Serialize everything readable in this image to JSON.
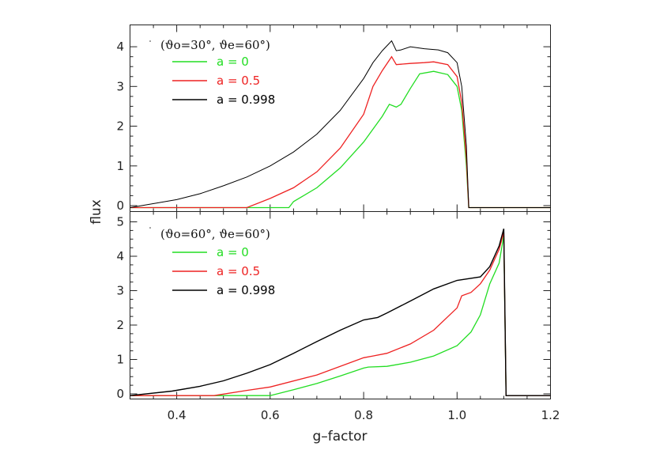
{
  "chart_data": {
    "type": "line",
    "xlabel": "g–factor",
    "ylabel": "flux",
    "xlim": [
      0.3,
      1.2
    ],
    "x_ticks": [
      "0.4",
      "0.6",
      "0.8",
      "1.0",
      "1.2"
    ],
    "grid": false,
    "legend_position": "top-left",
    "panels": [
      {
        "title": "(ϑo=30°, ϑe=60°)",
        "ylim": [
          -0.15,
          4.55
        ],
        "y_ticks": [
          "0",
          "1",
          "2",
          "3",
          "4"
        ],
        "series": [
          {
            "name": "a = 0",
            "color": "#22dd22",
            "x": [
              0.3,
              0.64,
              0.65,
              0.7,
              0.75,
              0.8,
              0.84,
              0.855,
              0.87,
              0.88,
              0.9,
              0.92,
              0.95,
              0.98,
              1.0,
              1.01,
              1.02,
              1.025,
              1.2
            ],
            "y": [
              -0.05,
              -0.05,
              0.1,
              0.45,
              0.95,
              1.6,
              2.25,
              2.55,
              2.48,
              2.55,
              2.95,
              3.32,
              3.38,
              3.3,
              3.0,
              2.4,
              1.0,
              -0.05,
              -0.05
            ]
          },
          {
            "name": "a = 0.5",
            "color": "#ee2222",
            "x": [
              0.3,
              0.55,
              0.6,
              0.65,
              0.7,
              0.75,
              0.8,
              0.82,
              0.84,
              0.86,
              0.87,
              0.9,
              0.93,
              0.95,
              0.98,
              1.0,
              1.01,
              1.02,
              1.025,
              1.2
            ],
            "y": [
              -0.05,
              -0.05,
              0.18,
              0.45,
              0.85,
              1.45,
              2.3,
              3.0,
              3.4,
              3.75,
              3.55,
              3.58,
              3.6,
              3.62,
              3.55,
              3.25,
              2.6,
              1.2,
              -0.05,
              -0.05
            ]
          },
          {
            "name": "a = 0.998",
            "color": "#000000",
            "x": [
              0.3,
              0.4,
              0.45,
              0.5,
              0.55,
              0.6,
              0.65,
              0.7,
              0.75,
              0.8,
              0.82,
              0.84,
              0.86,
              0.87,
              0.88,
              0.9,
              0.93,
              0.96,
              0.98,
              1.0,
              1.01,
              1.02,
              1.025,
              1.2
            ],
            "y": [
              -0.05,
              0.15,
              0.3,
              0.5,
              0.72,
              1.0,
              1.35,
              1.8,
              2.4,
              3.2,
              3.6,
              3.9,
              4.15,
              3.9,
              3.92,
              4.0,
              3.95,
              3.92,
              3.85,
              3.6,
              3.0,
              1.5,
              -0.05,
              -0.05
            ]
          }
        ]
      },
      {
        "title": "(ϑo=60°, ϑe=60°)",
        "ylim": [
          -0.15,
          5.3
        ],
        "y_ticks": [
          "0",
          "1",
          "2",
          "3",
          "4",
          "5"
        ],
        "series": [
          {
            "name": "a = 0",
            "color": "#22dd22",
            "x": [
              0.3,
              0.6,
              0.65,
              0.7,
              0.75,
              0.8,
              0.81,
              0.85,
              0.9,
              0.95,
              1.0,
              1.03,
              1.05,
              1.07,
              1.09,
              1.1,
              1.105,
              1.2
            ],
            "y": [
              -0.05,
              -0.05,
              0.12,
              0.3,
              0.52,
              0.75,
              0.78,
              0.8,
              0.92,
              1.1,
              1.4,
              1.8,
              2.3,
              3.2,
              3.8,
              4.6,
              -0.05,
              -0.05
            ]
          },
          {
            "name": "a = 0.5",
            "color": "#ee2222",
            "x": [
              0.3,
              0.48,
              0.55,
              0.6,
              0.7,
              0.8,
              0.82,
              0.85,
              0.9,
              0.95,
              1.0,
              1.01,
              1.03,
              1.05,
              1.07,
              1.09,
              1.1,
              1.105,
              1.2
            ],
            "y": [
              -0.05,
              -0.05,
              0.1,
              0.2,
              0.55,
              1.05,
              1.1,
              1.18,
              1.45,
              1.85,
              2.5,
              2.85,
              2.95,
              3.2,
              3.6,
              4.2,
              4.7,
              -0.05,
              -0.05
            ]
          },
          {
            "name": "a = 0.998",
            "color": "#000000",
            "x": [
              0.3,
              0.39,
              0.45,
              0.5,
              0.55,
              0.6,
              0.65,
              0.7,
              0.75,
              0.8,
              0.83,
              0.85,
              0.9,
              0.95,
              1.0,
              1.05,
              1.07,
              1.09,
              1.1,
              1.105,
              1.2
            ],
            "y": [
              -0.05,
              0.08,
              0.22,
              0.38,
              0.6,
              0.85,
              1.18,
              1.52,
              1.85,
              2.15,
              2.22,
              2.35,
              2.7,
              3.05,
              3.3,
              3.4,
              3.7,
              4.3,
              4.8,
              -0.05,
              -0.05
            ]
          }
        ]
      }
    ]
  }
}
